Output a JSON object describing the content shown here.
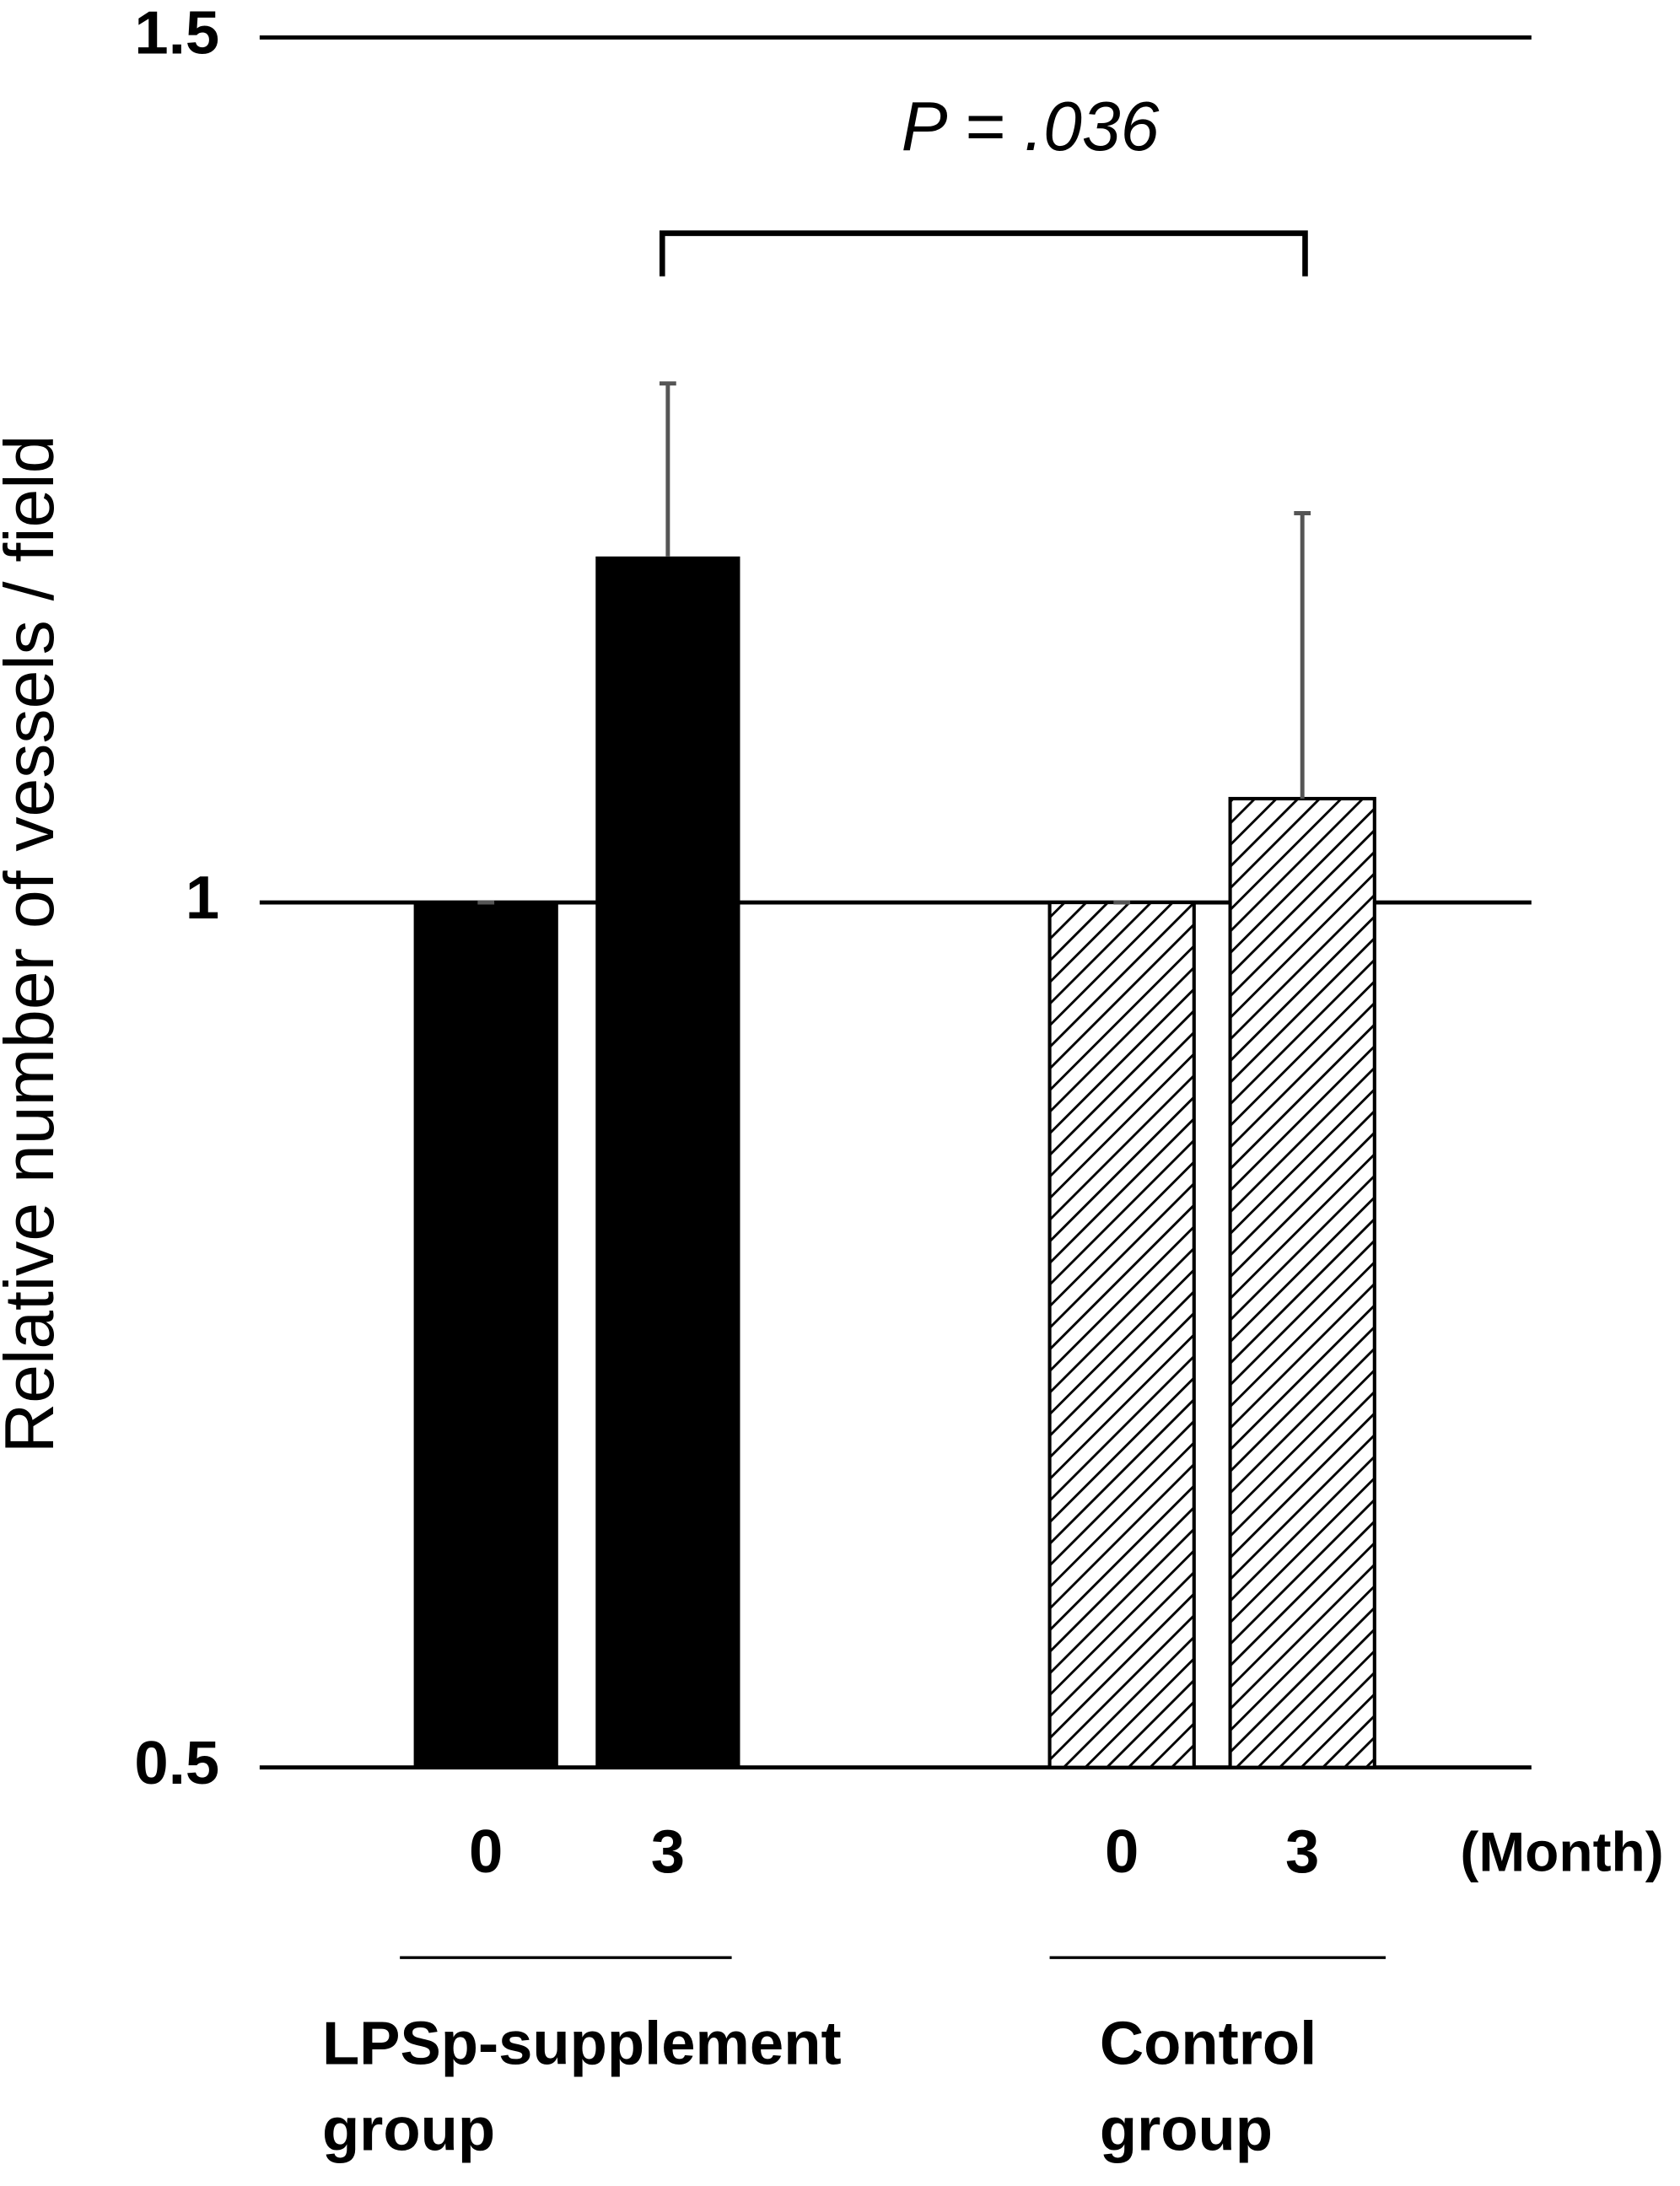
{
  "chart_data": {
    "type": "bar",
    "y_label": "Relative number of vessels / field",
    "categories": [
      "0",
      "3",
      "0",
      "3"
    ],
    "x_unit": "(Month)",
    "groups": [
      [
        "LPSp-supplement",
        "group"
      ],
      [
        "Control",
        "group"
      ]
    ],
    "values": [
      1.0,
      1.2,
      1.0,
      1.06
    ],
    "errors": [
      0,
      0.1,
      0,
      0.165
    ],
    "fills": [
      "solid",
      "solid",
      "hatched",
      "hatched"
    ],
    "color": "#000000",
    "error_color": "#555555",
    "annotation": "P = .036",
    "ylim": [
      0.5,
      1.5
    ],
    "yticks": [
      0.5,
      1,
      1.5
    ],
    "grid": true
  }
}
